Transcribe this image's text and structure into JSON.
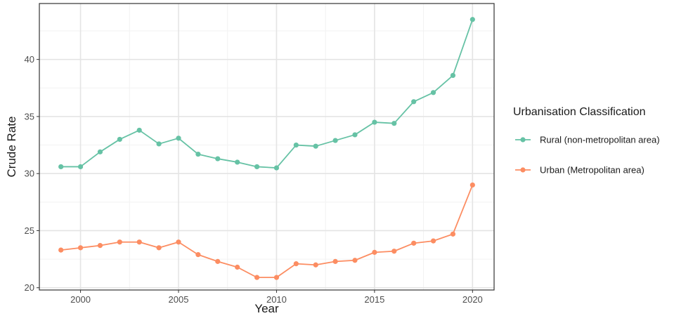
{
  "chart_data": {
    "type": "line",
    "xlabel": "Year",
    "ylabel": "Crude Rate",
    "xlim": [
      1997.9,
      2021.1
    ],
    "ylim": [
      19.8,
      44.9
    ],
    "x_ticks": [
      2000,
      2005,
      2010,
      2015,
      2020
    ],
    "y_ticks": [
      20,
      25,
      30,
      35,
      40
    ],
    "grid": true,
    "legend": {
      "title": "Urbanisation Classification",
      "placement": "right"
    },
    "x": [
      1999,
      2000,
      2001,
      2002,
      2003,
      2004,
      2005,
      2006,
      2007,
      2008,
      2009,
      2010,
      2011,
      2012,
      2013,
      2014,
      2015,
      2016,
      2017,
      2018,
      2019,
      2020
    ],
    "series": [
      {
        "name": "Rural (non-metropolitan area)",
        "color": "#66c2a5",
        "values": [
          30.6,
          30.6,
          31.9,
          33.0,
          33.8,
          32.6,
          33.1,
          31.7,
          31.3,
          31.0,
          30.6,
          30.5,
          32.5,
          32.4,
          32.9,
          33.4,
          34.5,
          34.4,
          36.3,
          37.1,
          38.6,
          43.5
        ]
      },
      {
        "name": "Urban (Metropolitan area)",
        "color": "#fc8d62",
        "values": [
          23.3,
          23.5,
          23.7,
          24.0,
          24.0,
          23.5,
          24.0,
          22.9,
          22.3,
          21.8,
          20.9,
          20.9,
          22.1,
          22.0,
          22.3,
          22.4,
          23.1,
          23.2,
          23.9,
          24.1,
          24.7,
          29.0
        ]
      }
    ]
  }
}
